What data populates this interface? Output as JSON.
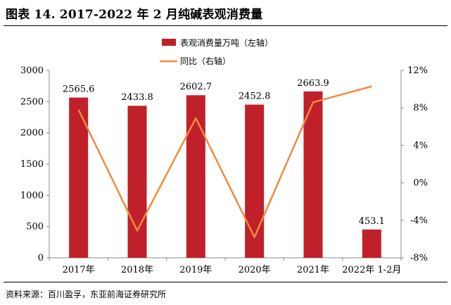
{
  "header": {
    "title": "图表 14. 2017-2022 年 2 月纯碱表观消费量"
  },
  "footer": {
    "source": "资料来源：百川盈孚，东亚前海证券研究所"
  },
  "colors": {
    "bar": "#C0202A",
    "line": "#F08A40",
    "axis": "#888888"
  },
  "chart_data": {
    "type": "bar",
    "categories": [
      "2017年",
      "2018年",
      "2019年",
      "2020年",
      "2021年",
      "2022年 1-2月"
    ],
    "series": [
      {
        "name": "表观消费量万吨（左轴）",
        "type": "bar",
        "axis": "left",
        "values": [
          2565.6,
          2433.8,
          2602.7,
          2452.8,
          2663.9,
          453.1
        ],
        "labels": [
          "2565.6",
          "2433.8",
          "2602.7",
          "2452.8",
          "2663.9",
          "453.1"
        ]
      },
      {
        "name": "同比（右轴）",
        "type": "line",
        "axis": "right",
        "values": [
          7.8,
          -5.1,
          6.9,
          -5.8,
          8.6,
          10.3
        ]
      }
    ],
    "y_left": {
      "min": 0,
      "max": 3000,
      "ticks": [
        "0",
        "500",
        "1000",
        "1500",
        "2000",
        "2500",
        "3000"
      ]
    },
    "y_right": {
      "min": -8,
      "max": 12,
      "ticks": [
        "-8%",
        "-4%",
        "0%",
        "4%",
        "8%",
        "12%"
      ]
    },
    "grid": false,
    "legend": "top-center"
  }
}
